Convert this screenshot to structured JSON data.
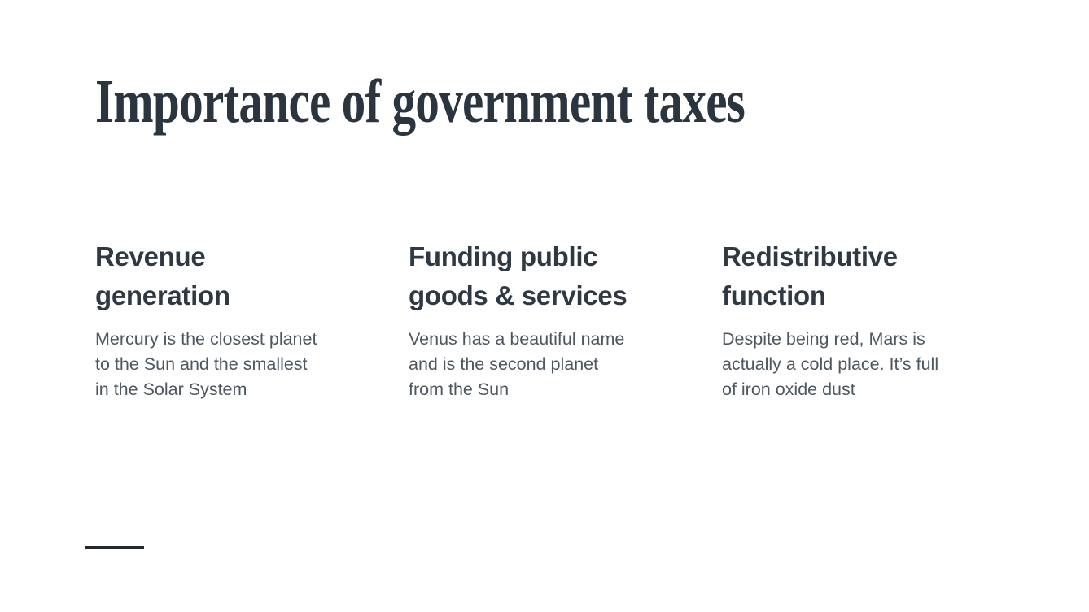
{
  "slide": {
    "title": "Importance of government taxes",
    "columns": [
      {
        "heading": "Revenue\ngeneration",
        "body": "Mercury is the closest planet\nto the Sun and the smallest\nin the Solar System"
      },
      {
        "heading": "Funding public\ngoods & services",
        "body": "Venus has a beautiful name\nand is the second planet\nfrom the Sun"
      },
      {
        "heading": "Redistributive\nfunction",
        "body": "Despite being red, Mars is\nactually a cold place. It’s full\nof iron oxide dust"
      }
    ],
    "colors": {
      "background": "#ffffff",
      "title_text": "#2a3540",
      "heading_text": "#2e3944",
      "body_text": "#4d5761",
      "accent_line": "#23282e"
    }
  }
}
